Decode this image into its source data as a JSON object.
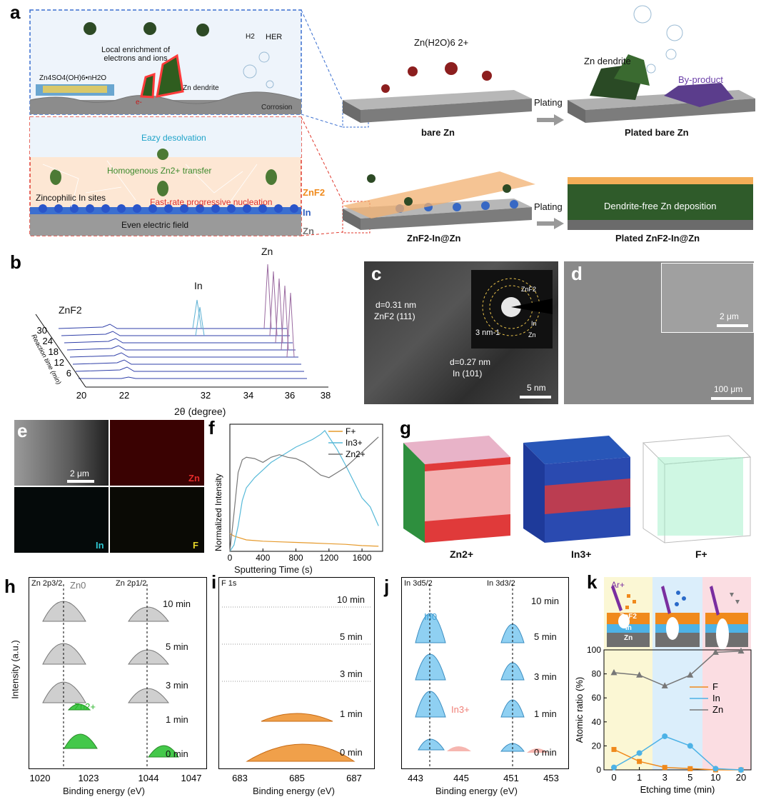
{
  "panels": {
    "a": {
      "letter": "a",
      "top_box": {
        "local_enrichment": "Local enrichment of electrons and ions",
        "zn4so4": "Zn4SO4(OH)6•nH2O",
        "zn_dendrite": "Zn dendrite",
        "her": "HER",
        "h2": "H2",
        "corrosion": "Corrosion",
        "electron": "e-"
      },
      "bottom_box": {
        "desolvation": "Eazy desolvation",
        "transfer": "Homogenous Zn2+ transfer",
        "sites": "Zincophilic In sites",
        "nucleation": "Fast-rate progressive nucleation",
        "field": "Even electric field",
        "layer_znf2": "ZnF2",
        "layer_in": "In",
        "layer_zn": "Zn"
      },
      "zn_h2o": "Zn(H2O)6 2+",
      "bare_zn": "bare Zn",
      "plated_bare_zn": "Plated bare Zn",
      "zn_dendrite_right": "Zn dendrite",
      "by_product": "By-product",
      "plating_1": "Plating",
      "plating_2": "Plating",
      "znf2_in_zn": "ZnF2-In@Zn",
      "plated_znf2_in_zn": "Plated ZnF2-In@Zn",
      "dendrite_free": "Dendrite-free Zn deposition"
    },
    "b": {
      "letter": "b",
      "peak_zn": "Zn",
      "peak_in": "In",
      "peak_znf2": "ZnF2",
      "xlabel": "2θ (degree)",
      "ylabel": "Reaction time (min)",
      "xticks": [
        "20",
        "22",
        "32",
        "34",
        "36",
        "38"
      ],
      "yticks": [
        "30",
        "24",
        "18",
        "12",
        "6"
      ]
    },
    "c": {
      "letter": "c",
      "d1": "d=0.31 nm",
      "d1_plane": "ZnF2 (111)",
      "d2": "d=0.27 nm",
      "d2_plane": "In (101)",
      "scale": "5 nm",
      "inset_scale": "3 nm-1",
      "ring_znf2": "ZnF2",
      "ring_in": "In",
      "ring_zn": "Zn"
    },
    "d": {
      "letter": "d",
      "scale": "100 μm",
      "inset_scale": "2 μm"
    },
    "e": {
      "letter": "e",
      "scale": "2 μm",
      "map_zn": "Zn",
      "map_in": "In",
      "map_f": "F"
    },
    "f": {
      "letter": "f",
      "xlabel": "Sputtering Time (s)",
      "ylabel": "Normalized Intensity"
    },
    "g": {
      "letter": "g",
      "labels": [
        "Zn2+",
        "In3+",
        "F+"
      ]
    },
    "h": {
      "letter": "h",
      "left_title": "Zn 2p3/2",
      "right_title": "Zn 2p1/2",
      "zn0": "Zn0",
      "zn2": "Zn2+",
      "ylabel": "Intensity (a.u.)",
      "xlabel": "Binding energy (eV)",
      "xticks": [
        "1020",
        "1023",
        "1044",
        "1047"
      ],
      "times": [
        "10 min",
        "5 min",
        "3 min",
        "1 min",
        "0 min"
      ]
    },
    "i": {
      "letter": "i",
      "title": "F 1s",
      "xlabel": "Binding energy (eV)",
      "xticks": [
        "683",
        "685",
        "687"
      ],
      "times": [
        "10 min",
        "5 min",
        "3 min",
        "1 min",
        "0 min"
      ]
    },
    "j": {
      "letter": "j",
      "left_title": "In 3d5/2",
      "right_title": "In 3d3/2",
      "in0": "In0",
      "in3": "In3+",
      "xlabel": "Binding energy (eV)",
      "xticks": [
        "443",
        "445",
        "451",
        "453"
      ],
      "times": [
        "10 min",
        "5 min",
        "3 min",
        "1 min",
        "0 min"
      ]
    },
    "k": {
      "letter": "k",
      "ar": "Ar+",
      "layer_znf2": "ZnF2",
      "layer_in": "In",
      "layer_zn": "Zn"
    }
  },
  "chart_data": [
    {
      "id": "f",
      "type": "line",
      "title": "",
      "xlabel": "Sputtering Time (s)",
      "ylabel": "Normalized Intensity",
      "xlim": [
        0,
        1850
      ],
      "ylim": [
        0,
        1
      ],
      "xticks": [
        0,
        400,
        800,
        1200,
        1600
      ],
      "series": [
        {
          "name": "F+",
          "color": "#e69a2c",
          "x": [
            0,
            50,
            100,
            200,
            300,
            400,
            600,
            800,
            1000,
            1200,
            1400,
            1600,
            1800
          ],
          "y": [
            0.14,
            0.12,
            0.11,
            0.09,
            0.085,
            0.08,
            0.075,
            0.07,
            0.065,
            0.06,
            0.055,
            0.045,
            0.04
          ]
        },
        {
          "name": "In3+",
          "color": "#56b9d8",
          "x": [
            0,
            50,
            100,
            150,
            200,
            300,
            400,
            500,
            600,
            800,
            1000,
            1100,
            1150,
            1200,
            1300,
            1400,
            1500,
            1600,
            1700,
            1800
          ],
          "y": [
            0.0,
            0.05,
            0.2,
            0.4,
            0.5,
            0.58,
            0.64,
            0.7,
            0.74,
            0.82,
            0.88,
            0.92,
            0.95,
            0.9,
            0.8,
            0.68,
            0.55,
            0.42,
            0.35,
            0.2
          ]
        },
        {
          "name": "Zn2+",
          "color": "#777777",
          "x": [
            0,
            50,
            100,
            150,
            200,
            300,
            400,
            500,
            600,
            700,
            800,
            900,
            1000,
            1100,
            1200,
            1300,
            1400,
            1500,
            1600,
            1700,
            1800
          ],
          "y": [
            0.0,
            0.3,
            0.62,
            0.72,
            0.74,
            0.73,
            0.7,
            0.74,
            0.76,
            0.74,
            0.73,
            0.7,
            0.65,
            0.6,
            0.58,
            0.62,
            0.66,
            0.72,
            0.78,
            0.84,
            0.9
          ]
        }
      ]
    },
    {
      "id": "k",
      "type": "line",
      "title": "",
      "xlabel": "Etching time (min)",
      "ylabel": "Atomic ratio (%)",
      "categories": [
        "0",
        "1",
        "3",
        "5",
        "10",
        "20"
      ],
      "ylim": [
        0,
        100
      ],
      "yticks": [
        0,
        20,
        40,
        60,
        80,
        100
      ],
      "series": [
        {
          "name": "F",
          "color": "#f08a1c",
          "marker": "square",
          "values": [
            17,
            7,
            2,
            1,
            0,
            0
          ]
        },
        {
          "name": "In",
          "color": "#4db2e6",
          "marker": "circle",
          "values": [
            2,
            14,
            28,
            20,
            1,
            0
          ]
        },
        {
          "name": "Zn",
          "color": "#777777",
          "marker": "triangle",
          "values": [
            81,
            79,
            70,
            79,
            98,
            99
          ]
        }
      ]
    }
  ]
}
